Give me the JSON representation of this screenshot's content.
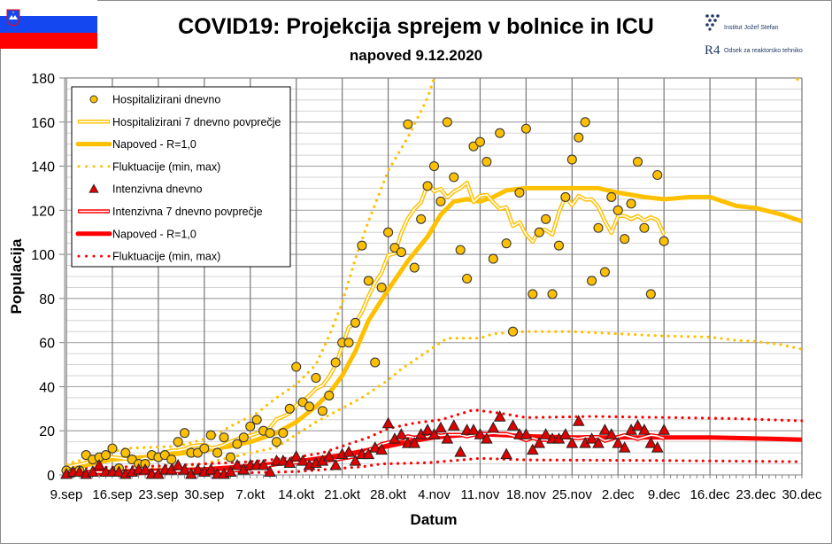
{
  "header": {
    "title": "COVID19: Projekcija sprejem v bolnice in ICU",
    "subtitle": "napoved 9.12.2020",
    "logos": {
      "institute": "Institut Jožef Stefan",
      "department": "Odsek za reaktorsko tehniko",
      "department_mark": "R4"
    },
    "flag": "Slovenia"
  },
  "colors": {
    "hospital": "#FFC000",
    "icu": "#FF0000",
    "icu_marker": "#E00000",
    "grid_major": "#808080",
    "grid_minor": "#D4D4D4"
  },
  "chart_data": {
    "type": "line",
    "title": "COVID19: Projekcija sprejem v bolnice in ICU",
    "subtitle": "napoved 9.12.2020",
    "xlabel": "Datum",
    "ylabel": "Populacija",
    "xlim": [
      "2020-09-09",
      "2020-12-30"
    ],
    "ylim": [
      0,
      180
    ],
    "y_ticks": [
      "0",
      "20",
      "40",
      "60",
      "80",
      "100",
      "120",
      "140",
      "160",
      "180"
    ],
    "x_ticks": [
      "9.sep",
      "16.sep",
      "23.sep",
      "30.sep",
      "7.okt",
      "14.okt",
      "21.okt",
      "28.okt",
      "4.nov",
      "11.nov",
      "18.nov",
      "25.nov",
      "2.dec",
      "9.dec",
      "16.dec",
      "23.dec",
      "30.dec"
    ],
    "grid": true,
    "legend_position": "top-left",
    "legend": [
      {
        "key": "hosp_daily",
        "label": "Hospitalizirani dnevno"
      },
      {
        "key": "hosp_avg",
        "label": "Hospitalizirani 7 dnevno povprečje"
      },
      {
        "key": "hosp_forecast",
        "label": "Napoved - R=1,0"
      },
      {
        "key": "hosp_fluct",
        "label": "Fluktuacije (min, max)"
      },
      {
        "key": "icu_daily",
        "label": "Intenzivna dnevno"
      },
      {
        "key": "icu_avg",
        "label": "Intenzivna 7 dnevno povprečje"
      },
      {
        "key": "icu_forecast",
        "label": "Napoved - R=1,0"
      },
      {
        "key": "icu_fluct",
        "label": "Fluktuacije (min, max)"
      }
    ],
    "daily_dates": [
      "2020-09-09",
      "2020-09-10",
      "2020-09-11",
      "2020-09-12",
      "2020-09-13",
      "2020-09-14",
      "2020-09-15",
      "2020-09-16",
      "2020-09-17",
      "2020-09-18",
      "2020-09-19",
      "2020-09-20",
      "2020-09-21",
      "2020-09-22",
      "2020-09-23",
      "2020-09-24",
      "2020-09-25",
      "2020-09-26",
      "2020-09-27",
      "2020-09-28",
      "2020-09-29",
      "2020-09-30",
      "2020-10-01",
      "2020-10-02",
      "2020-10-03",
      "2020-10-04",
      "2020-10-05",
      "2020-10-06",
      "2020-10-07",
      "2020-10-08",
      "2020-10-09",
      "2020-10-10",
      "2020-10-11",
      "2020-10-12",
      "2020-10-13",
      "2020-10-14",
      "2020-10-15",
      "2020-10-16",
      "2020-10-17",
      "2020-10-18",
      "2020-10-19",
      "2020-10-20",
      "2020-10-21",
      "2020-10-22",
      "2020-10-23",
      "2020-10-24",
      "2020-10-25",
      "2020-10-26",
      "2020-10-27",
      "2020-10-28",
      "2020-10-29",
      "2020-10-30",
      "2020-10-31",
      "2020-11-01",
      "2020-11-02",
      "2020-11-03",
      "2020-11-04",
      "2020-11-05",
      "2020-11-06",
      "2020-11-07",
      "2020-11-08",
      "2020-11-09",
      "2020-11-10",
      "2020-11-11",
      "2020-11-12",
      "2020-11-13",
      "2020-11-14",
      "2020-11-15",
      "2020-11-16",
      "2020-11-17",
      "2020-11-18",
      "2020-11-19",
      "2020-11-20",
      "2020-11-21",
      "2020-11-22",
      "2020-11-23",
      "2020-11-24",
      "2020-11-25",
      "2020-11-26",
      "2020-11-27",
      "2020-11-28",
      "2020-11-29",
      "2020-11-30",
      "2020-12-01",
      "2020-12-02",
      "2020-12-03",
      "2020-12-04",
      "2020-12-05",
      "2020-12-06",
      "2020-12-07",
      "2020-12-08",
      "2020-12-09"
    ],
    "series": {
      "hosp_daily": [
        2,
        1,
        2,
        9,
        7,
        8,
        9,
        12,
        3,
        10,
        7,
        5,
        5,
        9,
        8,
        9,
        7,
        15,
        19,
        10,
        10,
        12,
        18,
        10,
        17,
        8,
        14,
        17,
        22,
        25,
        20,
        19,
        15,
        19,
        30,
        49,
        33,
        31,
        44,
        29,
        36,
        51,
        60,
        60,
        69,
        104,
        88,
        51,
        85,
        110,
        103,
        101,
        159,
        94,
        116,
        131,
        140,
        124,
        160,
        135,
        102,
        89,
        149,
        151,
        142,
        98,
        155,
        105,
        65,
        128,
        157,
        82,
        110,
        116,
        82,
        104,
        126,
        143,
        153,
        160,
        88,
        112,
        92,
        126,
        120,
        107,
        123,
        142,
        112,
        82,
        136,
        106
      ],
      "icu_daily": [
        0,
        1,
        1,
        0,
        1,
        4,
        1,
        1,
        1,
        0,
        1,
        2,
        2,
        0,
        0,
        2,
        2,
        4,
        2,
        0,
        2,
        1,
        2,
        0,
        0,
        1,
        4,
        2,
        4,
        4,
        4,
        1,
        6,
        6,
        5,
        8,
        6,
        4,
        5,
        6,
        8,
        4,
        9,
        10,
        6,
        9,
        9,
        12,
        11,
        23,
        16,
        18,
        14,
        14,
        18,
        20,
        18,
        21,
        16,
        22,
        10,
        20,
        20,
        18,
        16,
        21,
        26,
        9,
        22,
        18,
        18,
        11,
        14,
        18,
        16,
        16,
        18,
        14,
        24,
        14,
        16,
        14,
        20,
        18,
        14,
        12,
        20,
        22,
        20,
        14,
        12,
        20
      ],
      "hosp_forecast": [
        [
          "2020-09-09",
          2.5
        ],
        [
          "2020-09-16",
          7
        ],
        [
          "2020-09-23",
          8.5
        ],
        [
          "2020-09-30",
          11
        ],
        [
          "2020-10-04",
          13
        ],
        [
          "2020-10-07",
          15
        ],
        [
          "2020-10-11",
          19
        ],
        [
          "2020-10-14",
          24
        ],
        [
          "2020-10-17",
          31
        ],
        [
          "2020-10-19",
          37
        ],
        [
          "2020-10-21",
          45
        ],
        [
          "2020-10-23",
          56
        ],
        [
          "2020-10-25",
          70
        ],
        [
          "2020-10-28",
          84
        ],
        [
          "2020-10-31",
          97
        ],
        [
          "2020-11-03",
          108
        ],
        [
          "2020-11-05",
          118
        ],
        [
          "2020-11-07",
          124
        ],
        [
          "2020-11-09",
          125
        ],
        [
          "2020-11-11",
          124
        ],
        [
          "2020-11-13",
          126
        ],
        [
          "2020-11-15",
          129
        ],
        [
          "2020-11-18",
          130
        ],
        [
          "2020-11-25",
          130
        ],
        [
          "2020-11-29",
          130
        ],
        [
          "2020-12-02",
          128
        ],
        [
          "2020-12-06",
          126
        ],
        [
          "2020-12-09",
          125
        ],
        [
          "2020-12-13",
          126
        ],
        [
          "2020-12-16",
          126
        ],
        [
          "2020-12-20",
          122
        ],
        [
          "2020-12-23",
          121
        ],
        [
          "2020-12-27",
          118
        ],
        [
          "2020-12-30",
          115
        ]
      ],
      "hosp_max": [
        [
          "2020-09-09",
          5
        ],
        [
          "2020-09-13",
          8
        ],
        [
          "2020-09-18",
          12
        ],
        [
          "2020-09-26",
          13
        ],
        [
          "2020-10-01",
          17
        ],
        [
          "2020-10-04",
          22
        ],
        [
          "2020-10-08",
          28
        ],
        [
          "2020-10-11",
          35
        ],
        [
          "2020-10-14",
          41
        ],
        [
          "2020-10-17",
          50
        ],
        [
          "2020-10-19",
          63
        ],
        [
          "2020-10-21",
          78
        ],
        [
          "2020-10-23",
          98
        ],
        [
          "2020-10-25",
          115
        ],
        [
          "2020-10-28",
          138
        ],
        [
          "2020-10-31",
          153
        ],
        [
          "2020-11-03",
          171
        ],
        [
          "2020-11-04",
          180
        ],
        [
          "2020-11-06",
          195
        ],
        [
          "2020-12-28",
          182
        ],
        [
          "2020-12-30",
          178
        ]
      ],
      "hosp_min": [
        [
          "2020-09-09",
          1
        ],
        [
          "2020-09-16",
          2
        ],
        [
          "2020-09-23",
          3
        ],
        [
          "2020-09-30",
          5
        ],
        [
          "2020-10-04",
          8
        ],
        [
          "2020-10-11",
          12.5
        ],
        [
          "2020-10-17",
          24
        ],
        [
          "2020-10-24",
          35
        ],
        [
          "2020-10-28",
          43
        ],
        [
          "2020-10-30",
          48
        ],
        [
          "2020-11-03",
          56
        ],
        [
          "2020-11-06",
          62
        ],
        [
          "2020-11-11",
          62
        ],
        [
          "2020-11-13",
          64
        ],
        [
          "2020-11-18",
          65
        ],
        [
          "2020-11-25",
          65
        ],
        [
          "2020-12-02",
          64
        ],
        [
          "2020-12-09",
          63
        ],
        [
          "2020-12-16",
          62.5
        ],
        [
          "2020-12-20",
          61
        ],
        [
          "2020-12-23",
          60.5
        ],
        [
          "2020-12-27",
          59
        ],
        [
          "2020-12-30",
          57
        ]
      ],
      "icu_forecast": [
        [
          "2020-09-09",
          1
        ],
        [
          "2020-09-16",
          1.5
        ],
        [
          "2020-09-23",
          2
        ],
        [
          "2020-09-30",
          2.5
        ],
        [
          "2020-10-07",
          4
        ],
        [
          "2020-10-14",
          6
        ],
        [
          "2020-10-21",
          9
        ],
        [
          "2020-10-28",
          13
        ],
        [
          "2020-11-01",
          15.5
        ],
        [
          "2020-11-04",
          17
        ],
        [
          "2020-11-08",
          18
        ],
        [
          "2020-11-11",
          18.5
        ],
        [
          "2020-11-15",
          18
        ],
        [
          "2020-11-18",
          17.5
        ],
        [
          "2020-11-25",
          17
        ],
        [
          "2020-12-02",
          17
        ],
        [
          "2020-12-09",
          17
        ],
        [
          "2020-12-16",
          17
        ],
        [
          "2020-12-23",
          16.5
        ],
        [
          "2020-12-30",
          16
        ]
      ],
      "icu_max": [
        [
          "2020-09-09",
          3
        ],
        [
          "2020-09-23",
          4
        ],
        [
          "2020-10-07",
          6
        ],
        [
          "2020-10-14",
          8
        ],
        [
          "2020-10-18",
          10
        ],
        [
          "2020-10-21",
          13
        ],
        [
          "2020-10-25",
          17
        ],
        [
          "2020-10-28",
          21
        ],
        [
          "2020-11-01",
          23.5
        ],
        [
          "2020-11-05",
          25
        ],
        [
          "2020-11-10",
          29.5
        ],
        [
          "2020-11-14",
          28
        ],
        [
          "2020-11-18",
          26
        ],
        [
          "2020-11-28",
          26.5
        ],
        [
          "2020-12-10",
          26
        ],
        [
          "2020-12-20",
          25.5
        ],
        [
          "2020-12-30",
          24.5
        ]
      ],
      "icu_min": [
        [
          "2020-09-09",
          0
        ],
        [
          "2020-10-07",
          1
        ],
        [
          "2020-10-14",
          1.5
        ],
        [
          "2020-10-21",
          3
        ],
        [
          "2020-10-24",
          3.7
        ],
        [
          "2020-10-27",
          5
        ],
        [
          "2020-11-03",
          5.5
        ],
        [
          "2020-11-11",
          7.5
        ],
        [
          "2020-11-18",
          6.8
        ],
        [
          "2020-12-09",
          6.5
        ],
        [
          "2020-12-30",
          6
        ]
      ]
    }
  }
}
